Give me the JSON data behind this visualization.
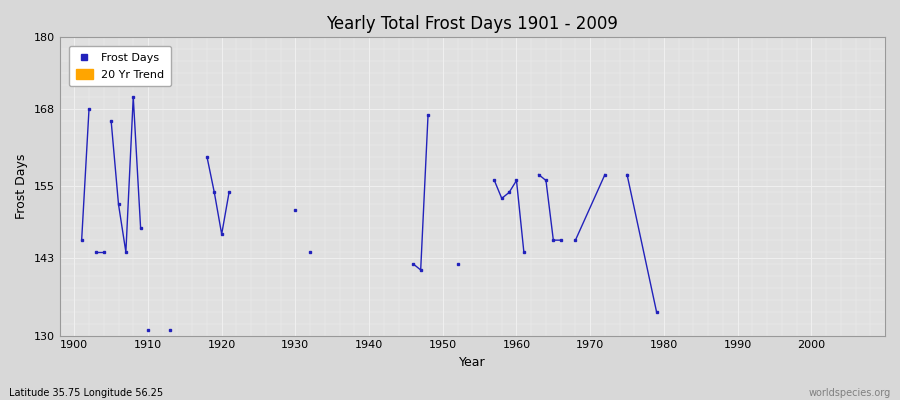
{
  "title": "Yearly Total Frost Days 1901 - 2009",
  "xlabel": "Year",
  "ylabel": "Frost Days",
  "subtitle": "Latitude 35.75 Longitude 56.25",
  "watermark": "worldspecies.org",
  "ylim": [
    130,
    180
  ],
  "xlim": [
    1898,
    2010
  ],
  "yticks": [
    130,
    143,
    155,
    168,
    180
  ],
  "xticks": [
    1900,
    1910,
    1920,
    1930,
    1940,
    1950,
    1960,
    1970,
    1980,
    1990,
    2000
  ],
  "background_color": "#d8d8d8",
  "plot_bg_color": "#e0e0e0",
  "grid_color": "#f0f0f0",
  "line_color": "#2222bb",
  "connected_segments": [
    [
      [
        1901,
        146
      ],
      [
        1902,
        168
      ]
    ],
    [
      [
        1903,
        144
      ],
      [
        1904,
        144
      ]
    ],
    [
      [
        1905,
        166
      ],
      [
        1906,
        152
      ],
      [
        1907,
        144
      ],
      [
        1908,
        170
      ],
      [
        1909,
        148
      ]
    ],
    [
      [
        1918,
        160
      ],
      [
        1919,
        154
      ],
      [
        1920,
        147
      ],
      [
        1921,
        154
      ]
    ],
    [
      [
        1946,
        142
      ],
      [
        1947,
        141
      ],
      [
        1948,
        167
      ]
    ],
    [
      [
        1957,
        156
      ],
      [
        1958,
        153
      ],
      [
        1959,
        154
      ],
      [
        1960,
        156
      ],
      [
        1961,
        144
      ]
    ],
    [
      [
        1963,
        157
      ],
      [
        1964,
        156
      ],
      [
        1965,
        146
      ],
      [
        1966,
        146
      ]
    ],
    [
      [
        1968,
        146
      ],
      [
        1972,
        157
      ]
    ],
    [
      [
        1975,
        157
      ],
      [
        1979,
        134
      ]
    ]
  ],
  "isolated_points": [
    [
      1901,
      146
    ],
    [
      1902,
      168
    ],
    [
      1905,
      166
    ],
    [
      1908,
      170
    ],
    [
      1910,
      131
    ],
    [
      1913,
      131
    ],
    [
      1930,
      151
    ],
    [
      1932,
      144
    ],
    [
      1948,
      167
    ],
    [
      1952,
      142
    ],
    [
      1957,
      156
    ],
    [
      1960,
      156
    ],
    [
      1963,
      157
    ],
    [
      1965,
      146
    ],
    [
      1972,
      157
    ],
    [
      1975,
      157
    ],
    [
      1979,
      134
    ]
  ]
}
